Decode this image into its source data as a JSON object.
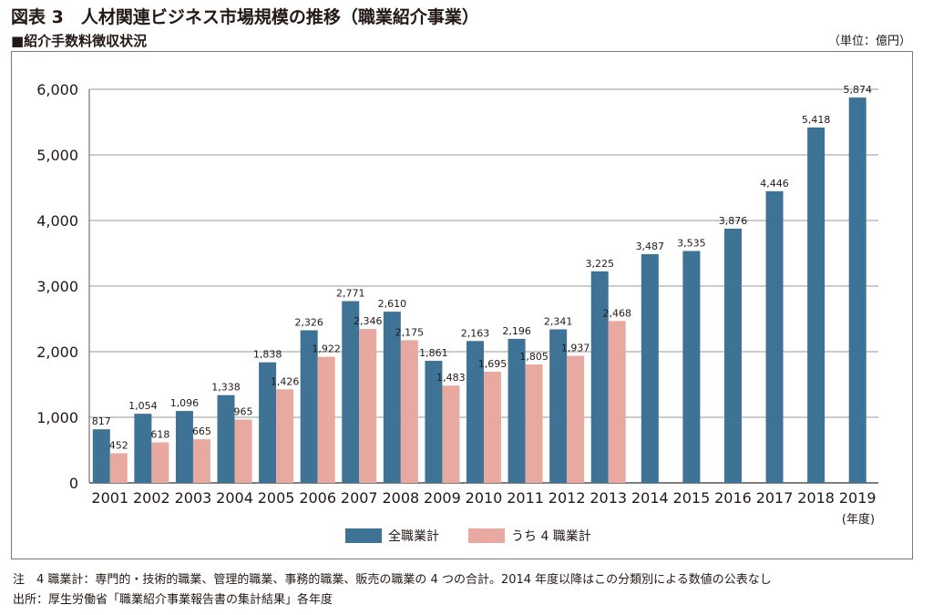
{
  "header": {
    "title": "図表 3　人材関連ビジネス市場規模の推移（職業紹介事業）",
    "subtitle": "■紹介手数料徴収状況",
    "unit": "（単位：億円）"
  },
  "colors": {
    "series_all": "#3e7396",
    "series_four": "#e8aaa0",
    "grid": "#9a9a9a",
    "frame": "#7a7a7a"
  },
  "chart_data": {
    "type": "bar",
    "title": "人材関連ビジネス市場規模の推移（職業紹介事業）",
    "xlabel": "(年度)",
    "ylabel": "",
    "ylim": [
      0,
      6000
    ],
    "yticks": [
      0,
      1000,
      2000,
      3000,
      4000,
      5000,
      6000
    ],
    "ytick_labels": [
      "0",
      "1,000",
      "2,000",
      "3,000",
      "4,000",
      "5,000",
      "6,000"
    ],
    "grid": true,
    "legend_position": "bottom",
    "categories": [
      "2001",
      "2002",
      "2003",
      "2004",
      "2005",
      "2006",
      "2007",
      "2008",
      "2009",
      "2010",
      "2011",
      "2012",
      "2013",
      "2014",
      "2015",
      "2016",
      "2017",
      "2018",
      "2019"
    ],
    "series": [
      {
        "name": "全職業計",
        "values": [
          817,
          1054,
          1096,
          1338,
          1838,
          2326,
          2771,
          2610,
          1861,
          2163,
          2196,
          2341,
          3225,
          3487,
          3535,
          3876,
          4446,
          5418,
          5874
        ],
        "labels": [
          "817",
          "1,054",
          "1,096",
          "1,338",
          "1,838",
          "2,326",
          "2,771",
          "2,610",
          "1,861",
          "2,163",
          "2,196",
          "2,341",
          "3,225",
          "3,487",
          "3,535",
          "3,876",
          "4,446",
          "5,418",
          "5,874"
        ]
      },
      {
        "name": "うち 4 職業計",
        "values": [
          452,
          618,
          665,
          965,
          1426,
          1922,
          2346,
          2175,
          1483,
          1695,
          1805,
          1937,
          2468,
          null,
          null,
          null,
          null,
          null,
          null
        ],
        "labels": [
          "452",
          "618",
          "665",
          "965",
          "1,426",
          "1,922",
          "2,346",
          "2,175",
          "1,483",
          "1,695",
          "1,805",
          "1,937",
          "2,468",
          "",
          "",
          "",
          "",
          "",
          ""
        ]
      }
    ]
  },
  "notes": {
    "note1": "注　4 職業計：専門的・技術的職業、管理的職業、事務的職業、販売の職業の 4 つの合計。2014 年度以降はこの分類別による数値の公表なし",
    "source": "出所：厚生労働省「職業紹介事業報告書の集計結果」各年度"
  }
}
